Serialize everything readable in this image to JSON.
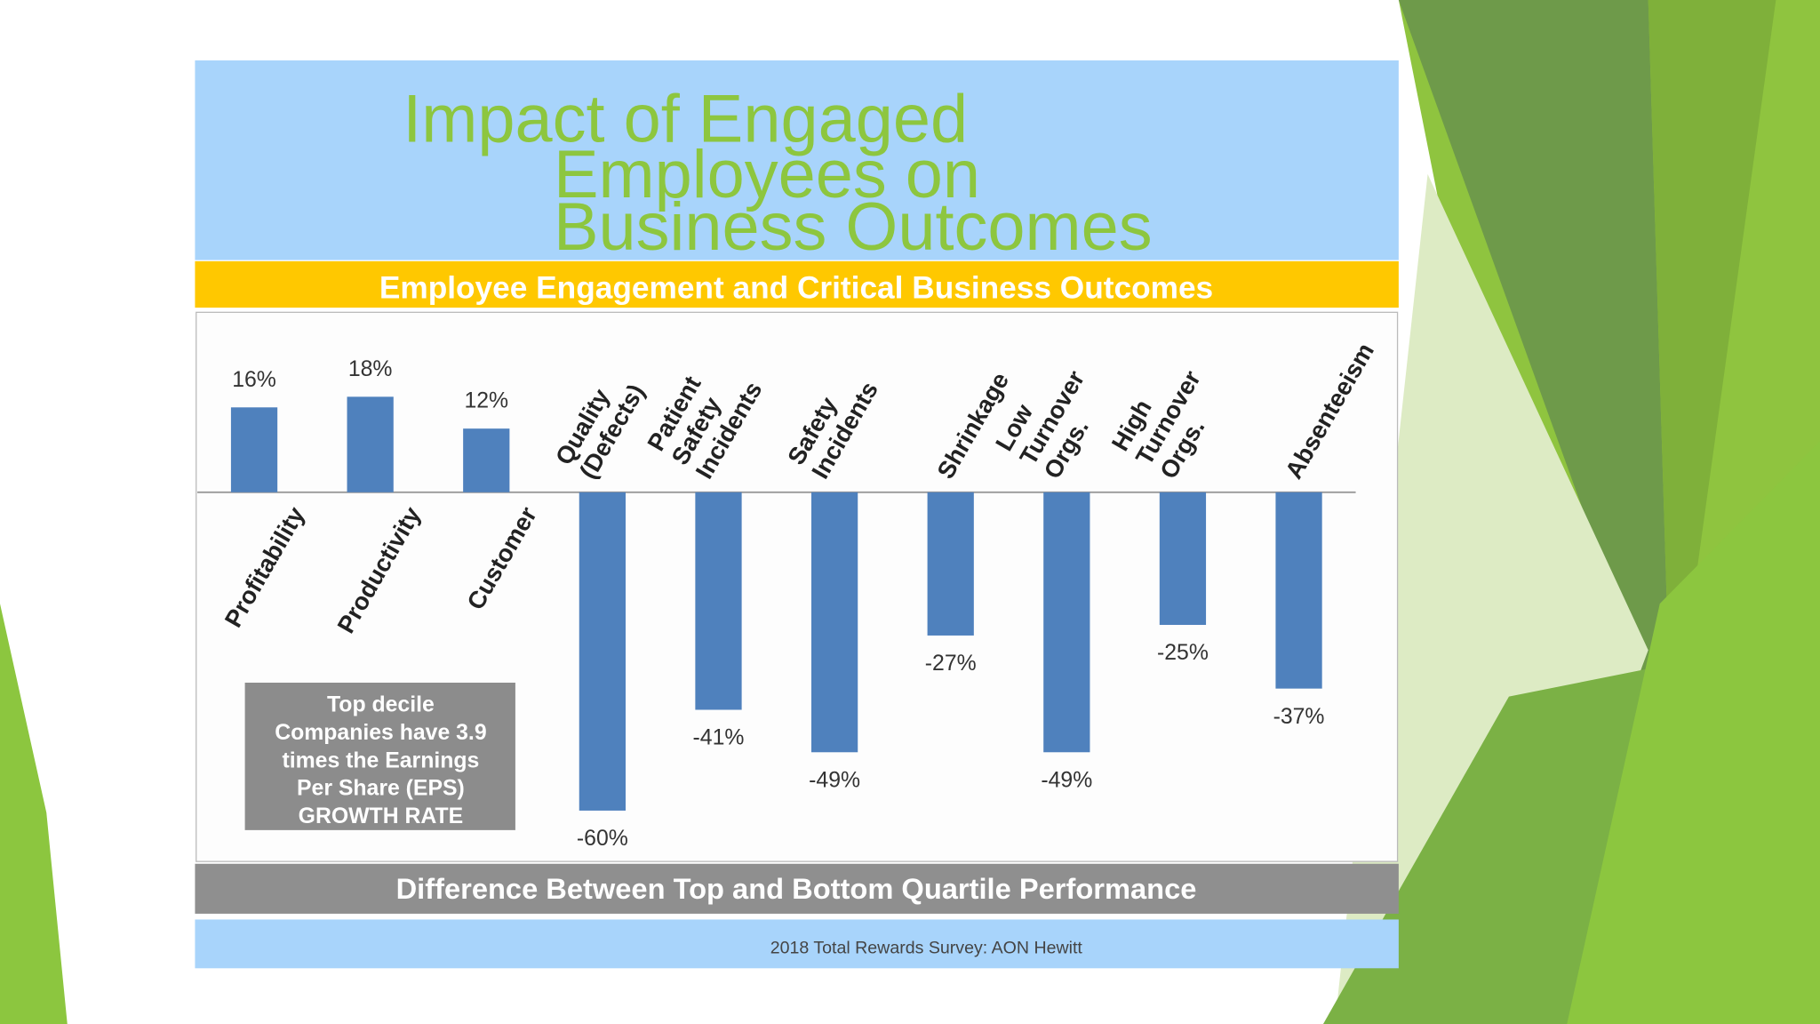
{
  "chart_data": {
    "type": "bar",
    "title": [
      "Impact of Engaged",
      "Employees on",
      "Business Outcomes"
    ],
    "subtitle": "Employee Engagement and Critical Business Outcomes",
    "x_label": "Difference Between Top and Bottom Quartile Performance",
    "source": "2018 Total Rewards Survey: AON Hewitt",
    "annotation": [
      "Top decile",
      "Companies have 3.9",
      "times the Earnings",
      "Per Share (EPS)",
      "GROWTH RATE"
    ],
    "categories": [
      [
        "Profitability"
      ],
      [
        "Productivity"
      ],
      [
        "Customer"
      ],
      [
        "Quality",
        "(Defects)"
      ],
      [
        "Patient",
        "Safety",
        "Incidents"
      ],
      [
        "Safety",
        "Incidents"
      ],
      [
        "Shrinkage"
      ],
      [
        "Low",
        "Turnover",
        "Orgs."
      ],
      [
        "High",
        "Turnover",
        "Orgs."
      ],
      [
        "Absenteeism"
      ]
    ],
    "values": [
      16,
      18,
      12,
      -60,
      -41,
      -49,
      -27,
      -49,
      -25,
      -37
    ],
    "value_labels": [
      "16%",
      "18%",
      "12%",
      "-60%",
      "-41%",
      "-49%",
      "-27%",
      "-49%",
      "-25%",
      "-37%"
    ],
    "color": "#4f81bd"
  }
}
